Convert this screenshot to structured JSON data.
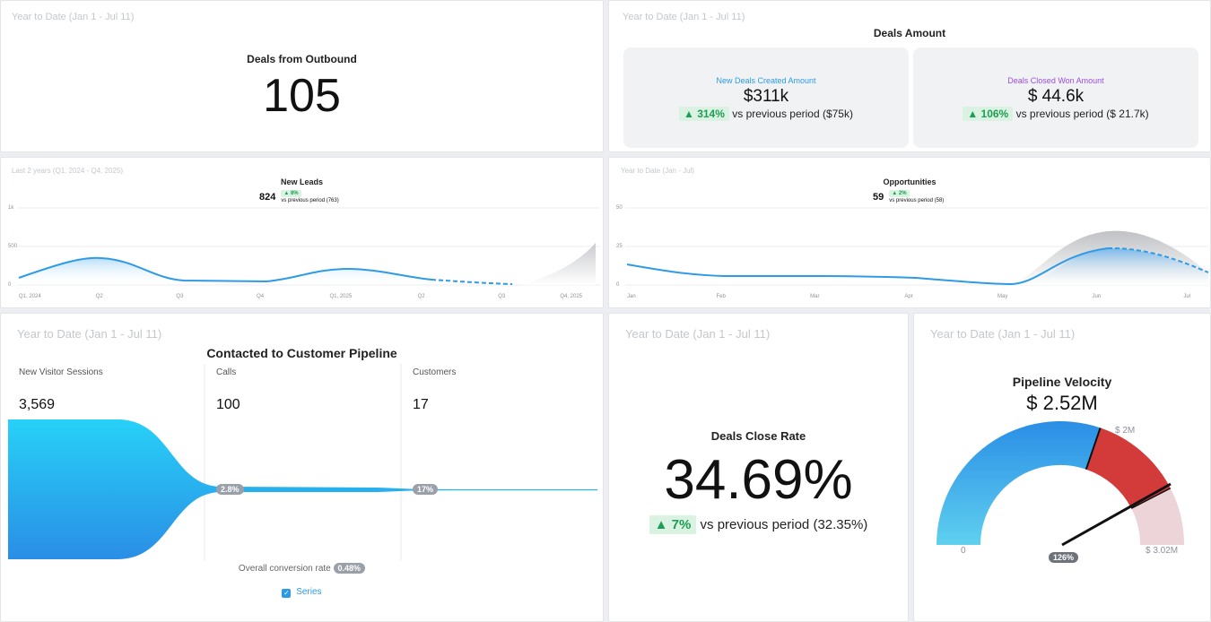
{
  "deals_outbound": {
    "period": "Year to Date (Jan 1 - Jul 11)",
    "title": "Deals from Outbound",
    "value": "105"
  },
  "deals_amount": {
    "period": "Year to Date (Jan 1 - Jul 11)",
    "title": "Deals Amount",
    "new_deals": {
      "label": "New Deals Created Amount",
      "value": "$311k",
      "change": "▲ 314%",
      "compare": "vs previous period ($75k)",
      "color": "#2b9be6"
    },
    "closed_won": {
      "label": "Deals Closed Won Amount",
      "value": "$ 44.6k",
      "change": "▲ 106%",
      "compare": "vs previous period ($ 21.7k)",
      "color": "#9b4de0"
    }
  },
  "new_leads": {
    "period": "Last 2 years (Q1, 2024 - Q4, 2025)",
    "title": "New Leads",
    "value": "824",
    "change": "▲ 8%",
    "compare": "vs previous period (763)",
    "y_ticks": [
      "1k",
      "500",
      "0"
    ],
    "x_ticks": [
      "Q1, 2024",
      "Q2",
      "Q3",
      "Q4",
      "Q1, 2025",
      "Q2",
      "Q3",
      "Q4, 2025"
    ]
  },
  "opportunities": {
    "period": "Year to Date (Jan - Jul)",
    "title": "Opportunities",
    "value": "59",
    "change": "▲ 2%",
    "compare": "vs previous period (58)",
    "y_ticks": [
      "50",
      "25",
      "0"
    ],
    "x_ticks": [
      "Jan",
      "Feb",
      "Mar",
      "Apr",
      "May",
      "Jun",
      "Jul"
    ]
  },
  "pipeline": {
    "period": "Year to Date (Jan 1 - Jul 11)",
    "title": "Contacted to Customer Pipeline",
    "stages": [
      {
        "label": "New Visitor Sessions",
        "value": "3,569"
      },
      {
        "label": "Calls",
        "value": "100"
      },
      {
        "label": "Customers",
        "value": "17"
      }
    ],
    "rate_calls": "2.8%",
    "rate_customers": "17%",
    "overall_label": "Overall conversion rate",
    "overall_value": "0.48%",
    "legend": "Series"
  },
  "close_rate": {
    "period": "Year to Date (Jan 1 - Jul 11)",
    "title": "Deals Close Rate",
    "value": "34.69%",
    "change": "▲ 7%",
    "compare": "vs previous period (32.35%)"
  },
  "velocity": {
    "period": "Year to Date (Jan 1 - Jul 11)",
    "title": "Pipeline Velocity",
    "value": "$ 2.52M",
    "min_label": "0",
    "mid_label": "$ 2M",
    "max_label": "$ 3.02M",
    "pct": "126%"
  },
  "chart_data": [
    {
      "type": "line",
      "title": "New Leads",
      "categories": [
        "Q1, 2024",
        "Q2",
        "Q3",
        "Q4",
        "Q1, 2025",
        "Q2",
        "Q3",
        "Q4, 2025"
      ],
      "series": [
        {
          "values": [
            60,
            360,
            60,
            50,
            250,
            50,
            20,
            null
          ]
        }
      ],
      "ylim": [
        0,
        1000
      ]
    },
    {
      "type": "line",
      "title": "Opportunities",
      "categories": [
        "Jan",
        "Feb",
        "Mar",
        "Apr",
        "May",
        "Jun",
        "Jul"
      ],
      "series": [
        {
          "values": [
            12,
            4,
            4,
            3,
            1,
            22,
            7
          ]
        }
      ],
      "ylim": [
        0,
        50
      ]
    }
  ]
}
